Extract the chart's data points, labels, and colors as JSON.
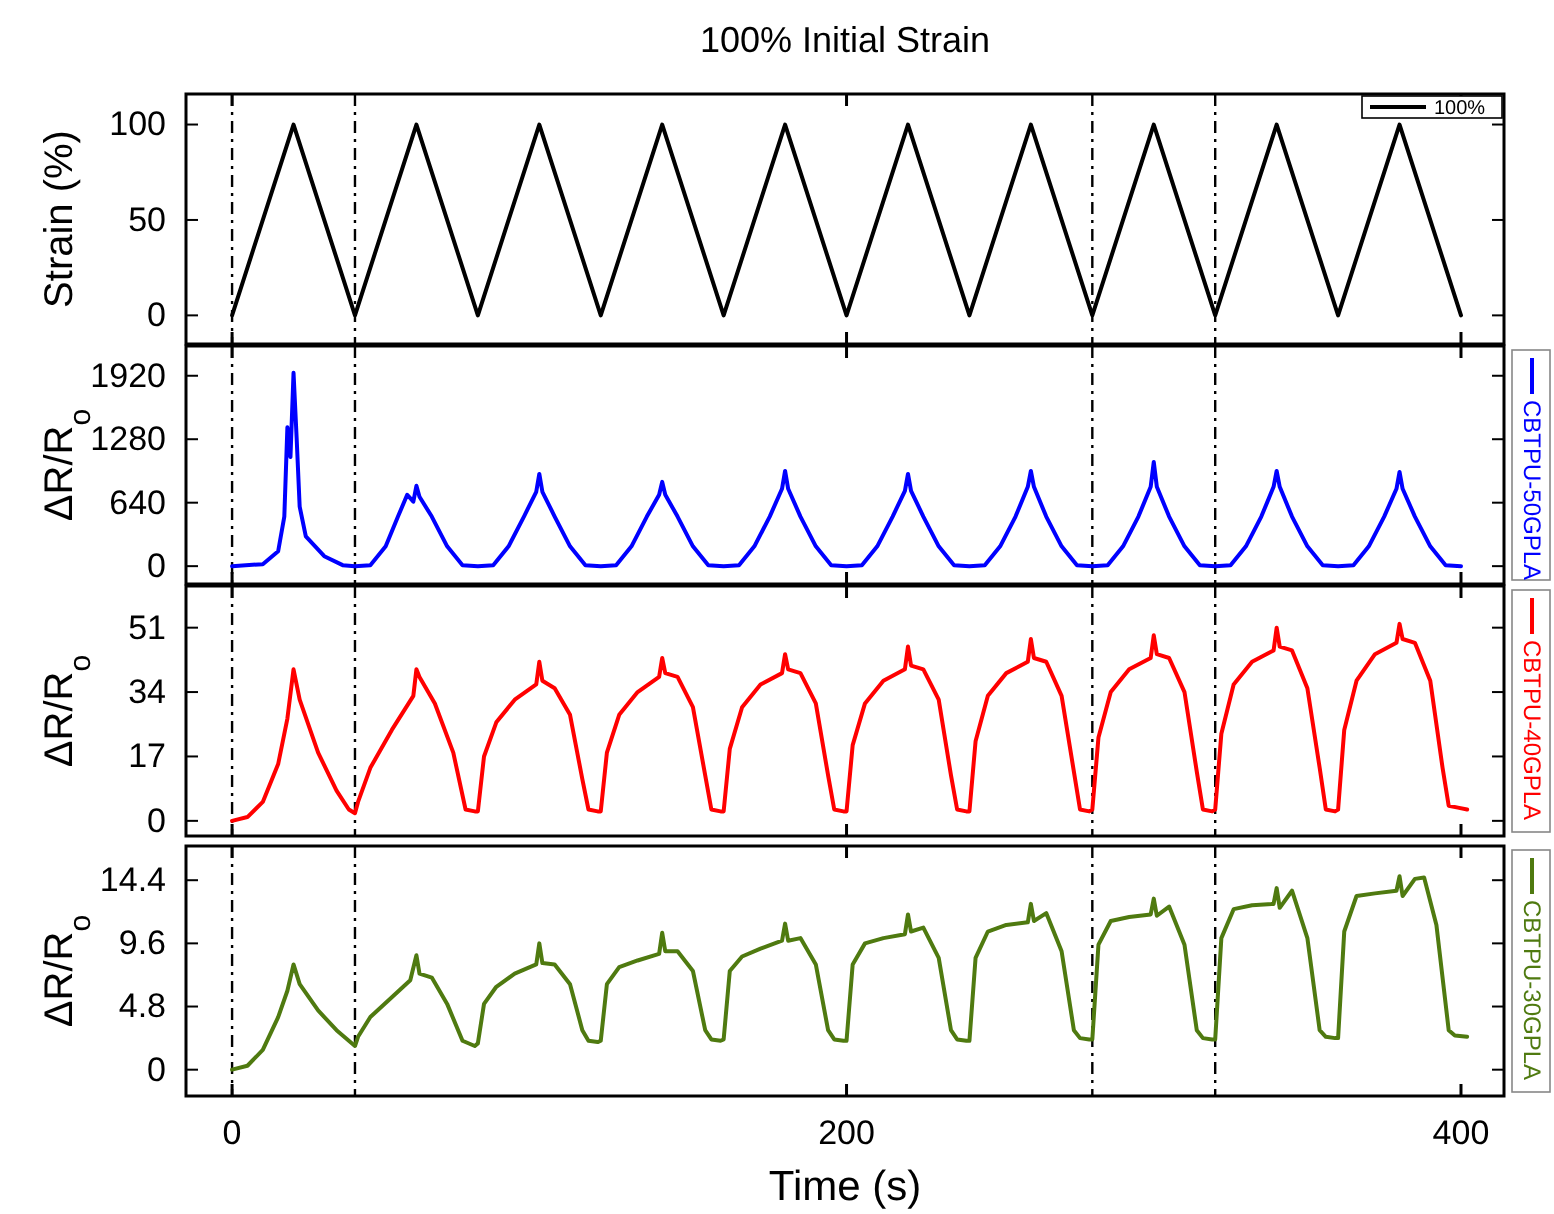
{
  "chart_data": [
    {
      "type": "line",
      "title": "100% Initial Strain",
      "ylabel": "Strain (%)",
      "xlim": [
        -15,
        414
      ],
      "xticks": [
        0,
        200,
        400
      ],
      "ylim": [
        -15,
        116
      ],
      "yticks": [
        0,
        50,
        100
      ],
      "tick_labels": "y",
      "legend": "top right",
      "ref_lines": [
        {
          "axis": "x",
          "value": 0,
          "line_style": "dashdot"
        },
        {
          "axis": "x",
          "value": 40,
          "line_style": "dashdot"
        },
        {
          "axis": "x",
          "value": 280,
          "line_style": "dashdot"
        },
        {
          "axis": "x",
          "value": 320,
          "line_style": "dashdot"
        }
      ],
      "series": [
        {
          "name": "100%",
          "color": "#000000",
          "x": [
            0,
            20,
            40,
            60,
            80,
            100,
            120,
            140,
            160,
            180,
            200,
            220,
            240,
            260,
            280,
            300,
            320,
            340,
            360,
            380,
            400
          ],
          "values": [
            0,
            100,
            0,
            100,
            0,
            100,
            0,
            100,
            0,
            100,
            0,
            100,
            0,
            100,
            0,
            100,
            0,
            100,
            0,
            100,
            0
          ]
        }
      ]
    },
    {
      "type": "line",
      "ylabel": "ΔR/R$_{o}$",
      "xlim": [
        -15,
        414
      ],
      "xticks": [
        0,
        200,
        400
      ],
      "ylim": [
        -180,
        2220
      ],
      "yticks": [
        0,
        640,
        1280,
        1920
      ],
      "tick_labels": "y",
      "legend": "right",
      "ref_lines": [
        {
          "axis": "x",
          "value": 0,
          "line_style": "dashdot"
        },
        {
          "axis": "x",
          "value": 40,
          "line_style": "dashdot"
        },
        {
          "axis": "x",
          "value": 280,
          "line_style": "dashdot"
        },
        {
          "axis": "x",
          "value": 320,
          "line_style": "dashdot"
        }
      ],
      "series": [
        {
          "name": "CBTPU-50GPLA",
          "color": "#0000ff",
          "x": [
            0,
            10,
            15,
            17,
            18,
            19,
            20,
            21,
            22,
            24,
            30,
            36,
            40,
            45,
            50,
            54,
            57,
            59,
            60,
            61,
            65,
            70,
            75,
            80,
            85,
            90,
            95,
            99,
            100,
            101,
            105,
            110,
            115,
            120,
            125,
            130,
            135,
            139,
            140,
            141,
            145,
            150,
            155,
            160,
            165,
            170,
            175,
            179,
            180,
            181,
            185,
            190,
            195,
            200,
            205,
            210,
            215,
            219,
            220,
            221,
            225,
            230,
            235,
            240,
            245,
            250,
            255,
            259,
            260,
            261,
            265,
            270,
            275,
            280,
            285,
            290,
            295,
            299,
            300,
            301,
            305,
            310,
            315,
            320,
            325,
            330,
            335,
            339,
            340,
            341,
            345,
            350,
            355,
            360,
            365,
            370,
            375,
            379,
            380,
            381,
            385,
            390,
            395,
            400
          ],
          "values": [
            0,
            20,
            150,
            500,
            1400,
            1100,
            1950,
            1300,
            600,
            300,
            100,
            10,
            0,
            10,
            200,
            500,
            720,
            650,
            810,
            700,
            500,
            200,
            10,
            0,
            10,
            200,
            500,
            750,
            930,
            750,
            500,
            200,
            10,
            0,
            10,
            200,
            500,
            720,
            850,
            720,
            500,
            200,
            10,
            0,
            10,
            200,
            500,
            780,
            960,
            780,
            500,
            200,
            10,
            0,
            10,
            200,
            500,
            760,
            930,
            760,
            500,
            200,
            10,
            0,
            10,
            200,
            500,
            800,
            960,
            800,
            500,
            200,
            10,
            0,
            10,
            200,
            500,
            800,
            1050,
            800,
            500,
            200,
            10,
            0,
            10,
            200,
            500,
            800,
            960,
            800,
            500,
            200,
            10,
            0,
            10,
            200,
            500,
            780,
            950,
            780,
            500,
            200,
            10,
            0
          ]
        }
      ]
    },
    {
      "type": "line",
      "ylabel": "ΔR/R$_{o}$",
      "xlim": [
        -15,
        414
      ],
      "xticks": [
        0,
        200,
        400
      ],
      "ylim": [
        -4,
        62
      ],
      "yticks": [
        0,
        17,
        34,
        51
      ],
      "tick_labels": "y",
      "legend": "right",
      "ref_lines": [
        {
          "axis": "x",
          "value": 0,
          "line_style": "dashdot"
        },
        {
          "axis": "x",
          "value": 40,
          "line_style": "dashdot"
        },
        {
          "axis": "x",
          "value": 280,
          "line_style": "dashdot"
        },
        {
          "axis": "x",
          "value": 320,
          "line_style": "dashdot"
        }
      ],
      "series": [
        {
          "name": "CBTPU-40GPLA",
          "color": "#ff0000",
          "x": [
            0,
            5,
            10,
            15,
            18,
            20,
            22,
            28,
            34,
            38,
            40,
            41,
            45,
            52,
            59,
            60,
            61,
            66,
            72,
            76,
            79,
            80,
            82,
            86,
            92,
            99,
            100,
            101,
            105,
            110,
            114,
            116,
            119,
            120,
            122,
            126,
            132,
            139,
            140,
            141,
            145,
            150,
            154,
            156,
            159,
            160,
            162,
            166,
            172,
            179,
            180,
            181,
            185,
            190,
            194,
            196,
            199,
            200,
            202,
            206,
            212,
            219,
            220,
            221,
            225,
            230,
            234,
            236,
            239,
            240,
            242,
            246,
            252,
            259,
            260,
            261,
            265,
            270,
            274,
            276,
            279,
            280,
            282,
            286,
            292,
            299,
            300,
            301,
            305,
            310,
            314,
            316,
            319,
            320,
            322,
            326,
            332,
            339,
            340,
            341,
            345,
            350,
            354,
            356,
            359,
            360,
            362,
            366,
            372,
            379,
            380,
            381,
            385,
            390,
            394,
            396,
            399,
            402
          ],
          "values": [
            0,
            1,
            5,
            15,
            27,
            40,
            32,
            18,
            8,
            3,
            2,
            5,
            14,
            24,
            33,
            40,
            38,
            31,
            18,
            3,
            2.5,
            2.5,
            17,
            26,
            32,
            36,
            42,
            37,
            35,
            28,
            11,
            3,
            2.5,
            2.5,
            18,
            28,
            34,
            38,
            43,
            39,
            38,
            30,
            12,
            3,
            2.5,
            2.5,
            19,
            30,
            36,
            39,
            44,
            40,
            39,
            31,
            12,
            3,
            2.5,
            2.5,
            20,
            31,
            37,
            40,
            46,
            41,
            40,
            32,
            12,
            3,
            2.5,
            2.5,
            21,
            33,
            39,
            42,
            48,
            43,
            42,
            33,
            13,
            3,
            2.5,
            3,
            22,
            34,
            40,
            43,
            49,
            44,
            43,
            34,
            13,
            3,
            2.5,
            3,
            23,
            36,
            42,
            45,
            51,
            46,
            45,
            35,
            14,
            3,
            2.5,
            3,
            24,
            37,
            44,
            47,
            52,
            48,
            47,
            37,
            14,
            4,
            3.5,
            3
          ]
        }
      ]
    },
    {
      "type": "line",
      "ylabel": "ΔR/R$_{o}$",
      "xlabel": "Time (s)",
      "xlim": [
        -15,
        414
      ],
      "xticks": [
        0,
        200,
        400
      ],
      "ylim": [
        -2,
        17
      ],
      "yticks": [
        0,
        4.8,
        9.6,
        14.4
      ],
      "legend": "right",
      "ref_lines": [
        {
          "axis": "x",
          "value": 0,
          "line_style": "dashdot"
        },
        {
          "axis": "x",
          "value": 40,
          "line_style": "dashdot"
        },
        {
          "axis": "x",
          "value": 280,
          "line_style": "dashdot"
        },
        {
          "axis": "x",
          "value": 320,
          "line_style": "dashdot"
        }
      ],
      "series": [
        {
          "name": "CBTPU-30GPLA",
          "color": "#4f7a10",
          "x": [
            0,
            5,
            10,
            15,
            18,
            20,
            22,
            28,
            34,
            40,
            41,
            45,
            52,
            58,
            60,
            61,
            65,
            70,
            75,
            79,
            80,
            82,
            86,
            92,
            99,
            100,
            101,
            105,
            110,
            114,
            116,
            119,
            120,
            122,
            126,
            132,
            139,
            140,
            141,
            145,
            150,
            154,
            156,
            159,
            160,
            162,
            166,
            172,
            179,
            180,
            181,
            185,
            190,
            194,
            196,
            199,
            200,
            202,
            206,
            212,
            219,
            220,
            221,
            225,
            230,
            234,
            236,
            239,
            240,
            242,
            246,
            252,
            259,
            260,
            261,
            265,
            270,
            274,
            276,
            279,
            280,
            282,
            286,
            292,
            299,
            300,
            301,
            305,
            310,
            314,
            316,
            319,
            320,
            322,
            326,
            332,
            339,
            340,
            341,
            345,
            350,
            354,
            356,
            359,
            360,
            362,
            366,
            372,
            379,
            380,
            381,
            385,
            388,
            392,
            396,
            398,
            402
          ],
          "values": [
            0,
            0.3,
            1.5,
            4,
            6,
            8,
            6.5,
            4.5,
            3,
            1.8,
            2.5,
            4,
            5.5,
            6.8,
            8.7,
            7.3,
            7,
            5,
            2.2,
            1.8,
            2,
            5,
            6.3,
            7.3,
            8,
            9.6,
            8.1,
            8,
            6.5,
            3,
            2.2,
            2.1,
            2.2,
            6.5,
            7.8,
            8.3,
            8.8,
            10.4,
            9,
            9,
            7.5,
            3,
            2.3,
            2.2,
            2.3,
            7.5,
            8.6,
            9.2,
            9.8,
            11.1,
            9.8,
            10,
            8,
            3,
            2.3,
            2.2,
            2.2,
            8,
            9.6,
            10,
            10.3,
            11.8,
            10.5,
            10.8,
            8.5,
            3,
            2.3,
            2.2,
            2.2,
            8.5,
            10.5,
            11,
            11.2,
            12.6,
            11.3,
            11.9,
            9,
            3,
            2.4,
            2.3,
            2.3,
            9.5,
            11.3,
            11.6,
            11.8,
            13,
            11.7,
            12.4,
            9.5,
            3,
            2.4,
            2.3,
            2.3,
            10,
            12.2,
            12.5,
            12.6,
            13.8,
            12.3,
            13.6,
            10,
            3,
            2.5,
            2.4,
            2.4,
            10.5,
            13.2,
            13.4,
            13.6,
            14.7,
            13.2,
            14.5,
            14.6,
            11,
            3,
            2.6,
            2.5
          ]
        }
      ]
    }
  ]
}
